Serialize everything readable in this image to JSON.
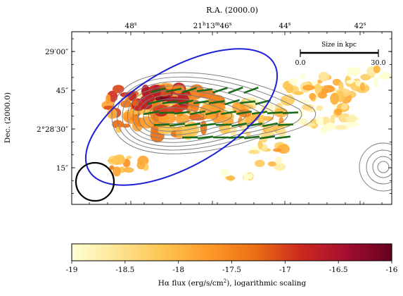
{
  "chart_data": {
    "type": "heatmap",
    "xlabel": "R.A. (2000.0)",
    "ylabel": "Dec. (2000.0)",
    "x_ticks": [
      {
        "base": "48",
        "sup": "s"
      },
      {
        "base": "21",
        "sup": "h",
        "mid": "13",
        "sup2": "m",
        "tail": "46",
        "sup3": "s"
      },
      {
        "base": "44",
        "sup": "s"
      },
      {
        "base": "42",
        "sup": "s"
      }
    ],
    "y_ticks": [
      "29′00″",
      "45″",
      "2°28′30″",
      "15″"
    ],
    "scalebar": {
      "title": "Size in kpc",
      "start_label": "0.0",
      "end_label": "30.0",
      "start": 0.0,
      "end": 30.0
    },
    "colorbar": {
      "label": "Hα flux (erg/s/cm²), logarithmic scaling",
      "label_main": "Hα flux (erg/s/cm",
      "label_sup": "2",
      "label_tail": "), logarithmic scaling",
      "min": -19,
      "max": -16,
      "ticks": [
        "-19",
        "-18.5",
        "-18",
        "-17.5",
        "-17",
        "-16.5",
        "-16"
      ],
      "colormap": [
        "#ffffd4",
        "#fee391",
        "#fec44f",
        "#fe9929",
        "#ec7014",
        "#cc2a1e",
        "#a50f30",
        "#67001f"
      ]
    },
    "contour_color": "#808080",
    "ellipse_color": "#1f1fd6",
    "vector_color": "#1a6b1a",
    "beam_color": "#000000"
  }
}
